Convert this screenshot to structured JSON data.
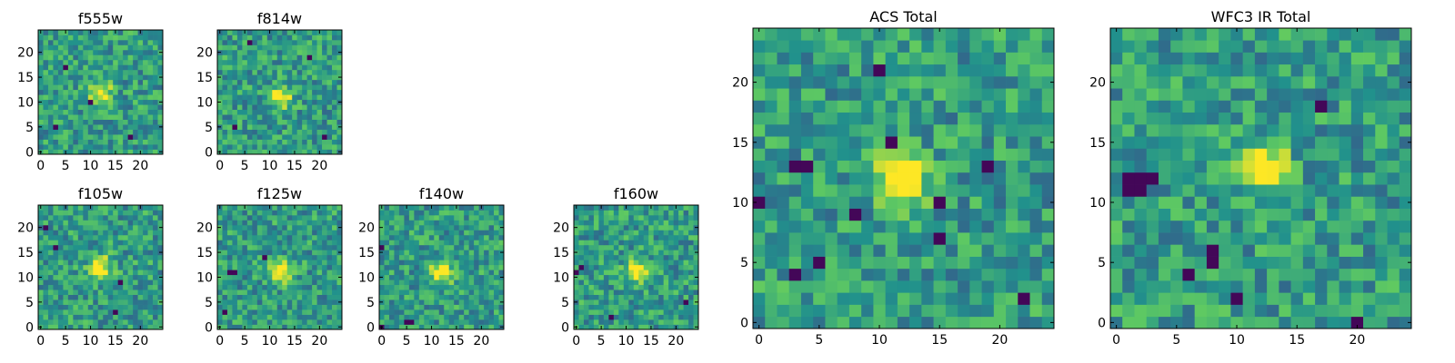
{
  "figure": {
    "colormap": "viridis",
    "colormap_stops": [
      "#440154",
      "#3b528b",
      "#21918c",
      "#5ec962",
      "#fde725"
    ],
    "frame_color": "#000000",
    "background": "#ffffff"
  },
  "chart_data": [
    {
      "type": "heatmap",
      "title": "f555w",
      "xticks": [
        "0",
        "5",
        "10",
        "15",
        "20"
      ],
      "yticks": [
        "0",
        "5",
        "10",
        "15",
        "20"
      ],
      "xlim": [
        -0.5,
        24.5
      ],
      "ylim": [
        -0.5,
        24.5
      ],
      "grid_size": 25,
      "bright_center": [
        12,
        12
      ],
      "dark_pixels": [
        [
          5,
          17
        ],
        [
          10,
          10
        ],
        [
          3,
          5
        ],
        [
          18,
          3
        ]
      ]
    },
    {
      "type": "heatmap",
      "title": "f814w",
      "xticks": [
        "0",
        "5",
        "10",
        "15",
        "20"
      ],
      "yticks": [
        "0",
        "5",
        "10",
        "15",
        "20"
      ],
      "xlim": [
        -0.5,
        24.5
      ],
      "ylim": [
        -0.5,
        24.5
      ],
      "grid_size": 25,
      "bright_center": [
        12,
        11
      ],
      "dark_pixels": [
        [
          6,
          22
        ],
        [
          3,
          5
        ],
        [
          18,
          19
        ],
        [
          21,
          3
        ]
      ]
    },
    {
      "type": "heatmap",
      "title": "f105w",
      "xticks": [
        "0",
        "5",
        "10",
        "15",
        "20"
      ],
      "yticks": [
        "0",
        "5",
        "10",
        "15",
        "20"
      ],
      "xlim": [
        -0.5,
        24.5
      ],
      "ylim": [
        -0.5,
        24.5
      ],
      "grid_size": 25,
      "bright_center": [
        12,
        12
      ],
      "dark_pixels": [
        [
          3,
          16
        ],
        [
          15,
          3
        ],
        [
          1,
          20
        ],
        [
          16,
          9
        ]
      ]
    },
    {
      "type": "heatmap",
      "title": "f125w",
      "xticks": [
        "0",
        "5",
        "10",
        "15",
        "20"
      ],
      "yticks": [
        "0",
        "5",
        "10",
        "15",
        "20"
      ],
      "xlim": [
        -0.5,
        24.5
      ],
      "ylim": [
        -0.5,
        24.5
      ],
      "grid_size": 25,
      "bright_center": [
        12,
        11
      ],
      "dark_pixels": [
        [
          2,
          11
        ],
        [
          3,
          11
        ],
        [
          1,
          3
        ],
        [
          9,
          14
        ]
      ]
    },
    {
      "type": "heatmap",
      "title": "f140w",
      "xticks": [
        "0",
        "5",
        "10",
        "15",
        "20"
      ],
      "yticks": [
        "0",
        "5",
        "10",
        "15",
        "20"
      ],
      "xlim": [
        -0.5,
        24.5
      ],
      "ylim": [
        -0.5,
        24.5
      ],
      "grid_size": 25,
      "bright_center": [
        12,
        11
      ],
      "dark_pixels": [
        [
          0,
          16
        ],
        [
          5,
          1
        ],
        [
          6,
          1
        ],
        [
          0,
          0
        ]
      ]
    },
    {
      "type": "heatmap",
      "title": "f160w",
      "xticks": [
        "0",
        "5",
        "10",
        "15",
        "20"
      ],
      "yticks": [
        "0",
        "5",
        "10",
        "15",
        "20"
      ],
      "xlim": [
        -0.5,
        24.5
      ],
      "ylim": [
        -0.5,
        24.5
      ],
      "grid_size": 25,
      "bright_center": [
        12,
        11
      ],
      "dark_pixels": [
        [
          0,
          11
        ],
        [
          1,
          12
        ],
        [
          7,
          2
        ],
        [
          22,
          5
        ]
      ]
    },
    {
      "type": "heatmap",
      "title": "ACS Total",
      "xticks": [
        "0",
        "5",
        "10",
        "15",
        "20"
      ],
      "yticks": [
        "0",
        "5",
        "10",
        "15",
        "20"
      ],
      "xlim": [
        -0.5,
        24.5
      ],
      "ylim": [
        -0.5,
        24.5
      ],
      "grid_size": 25,
      "bright_center": [
        12,
        12
      ],
      "dark_pixels": [
        [
          3,
          13
        ],
        [
          4,
          13
        ],
        [
          10,
          21
        ],
        [
          11,
          15
        ],
        [
          8,
          9
        ],
        [
          3,
          4
        ],
        [
          5,
          5
        ],
        [
          0,
          10
        ],
        [
          19,
          13
        ],
        [
          15,
          10
        ],
        [
          15,
          7
        ],
        [
          22,
          2
        ]
      ]
    },
    {
      "type": "heatmap",
      "title": "WFC3 IR Total",
      "xticks": [
        "0",
        "5",
        "10",
        "15",
        "20"
      ],
      "yticks": [
        "0",
        "5",
        "10",
        "15",
        "20"
      ],
      "xlim": [
        -0.5,
        24.5
      ],
      "ylim": [
        -0.5,
        24.5
      ],
      "grid_size": 25,
      "bright_center": [
        12,
        13
      ],
      "dark_pixels": [
        [
          1,
          12
        ],
        [
          2,
          12
        ],
        [
          1,
          11
        ],
        [
          2,
          11
        ],
        [
          3,
          12
        ],
        [
          17,
          18
        ],
        [
          8,
          5
        ],
        [
          8,
          6
        ],
        [
          20,
          0
        ],
        [
          6,
          4
        ],
        [
          10,
          2
        ]
      ]
    }
  ]
}
